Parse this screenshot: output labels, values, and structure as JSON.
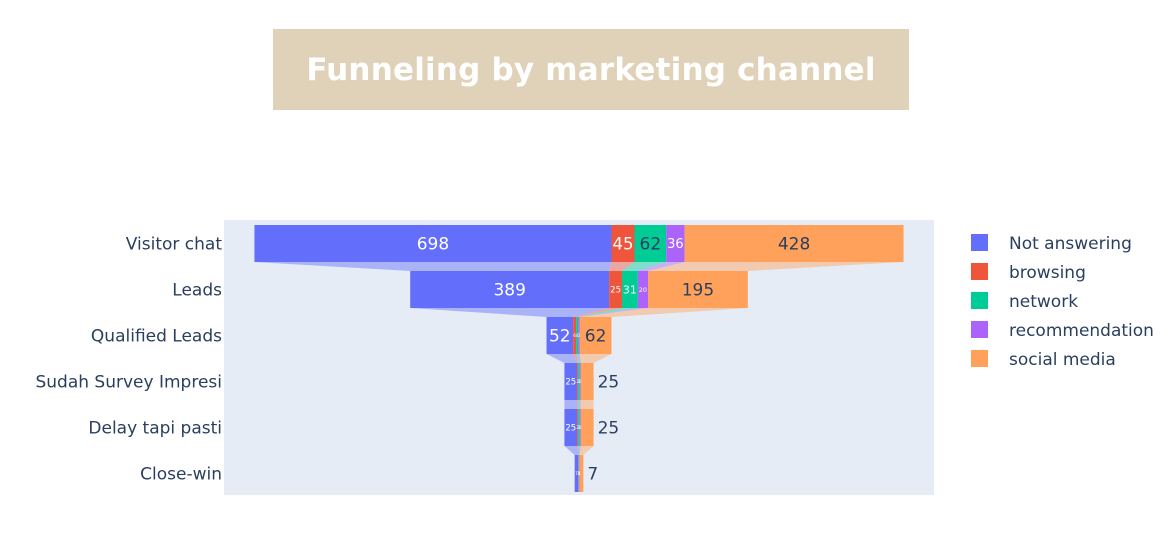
{
  "title": "Funneling by marketing channel",
  "chart_data": {
    "type": "funnel",
    "categories": [
      "Visitor chat",
      "Leads",
      "Qualified Leads",
      "Sudah Survey Impresi",
      "Delay tapi pasti",
      "Close-win"
    ],
    "series": [
      {
        "name": "Not answering",
        "color": "#636efa",
        "values": [
          698,
          389,
          52,
          25,
          25,
          7
        ]
      },
      {
        "name": "browsing",
        "color": "#ef553b",
        "values": [
          45,
          25,
          6,
          2,
          2,
          1
        ]
      },
      {
        "name": "network",
        "color": "#00cc96",
        "values": [
          62,
          31,
          4,
          3,
          3,
          1
        ]
      },
      {
        "name": "recommendation",
        "color": "#ab63fa",
        "values": [
          36,
          20,
          3,
          2,
          2,
          1
        ]
      },
      {
        "name": "social media",
        "color": "#ffa15a",
        "values": [
          428,
          195,
          62,
          25,
          25,
          7
        ]
      }
    ],
    "legend_position": "right",
    "plot_background": "#e5ecf6"
  }
}
